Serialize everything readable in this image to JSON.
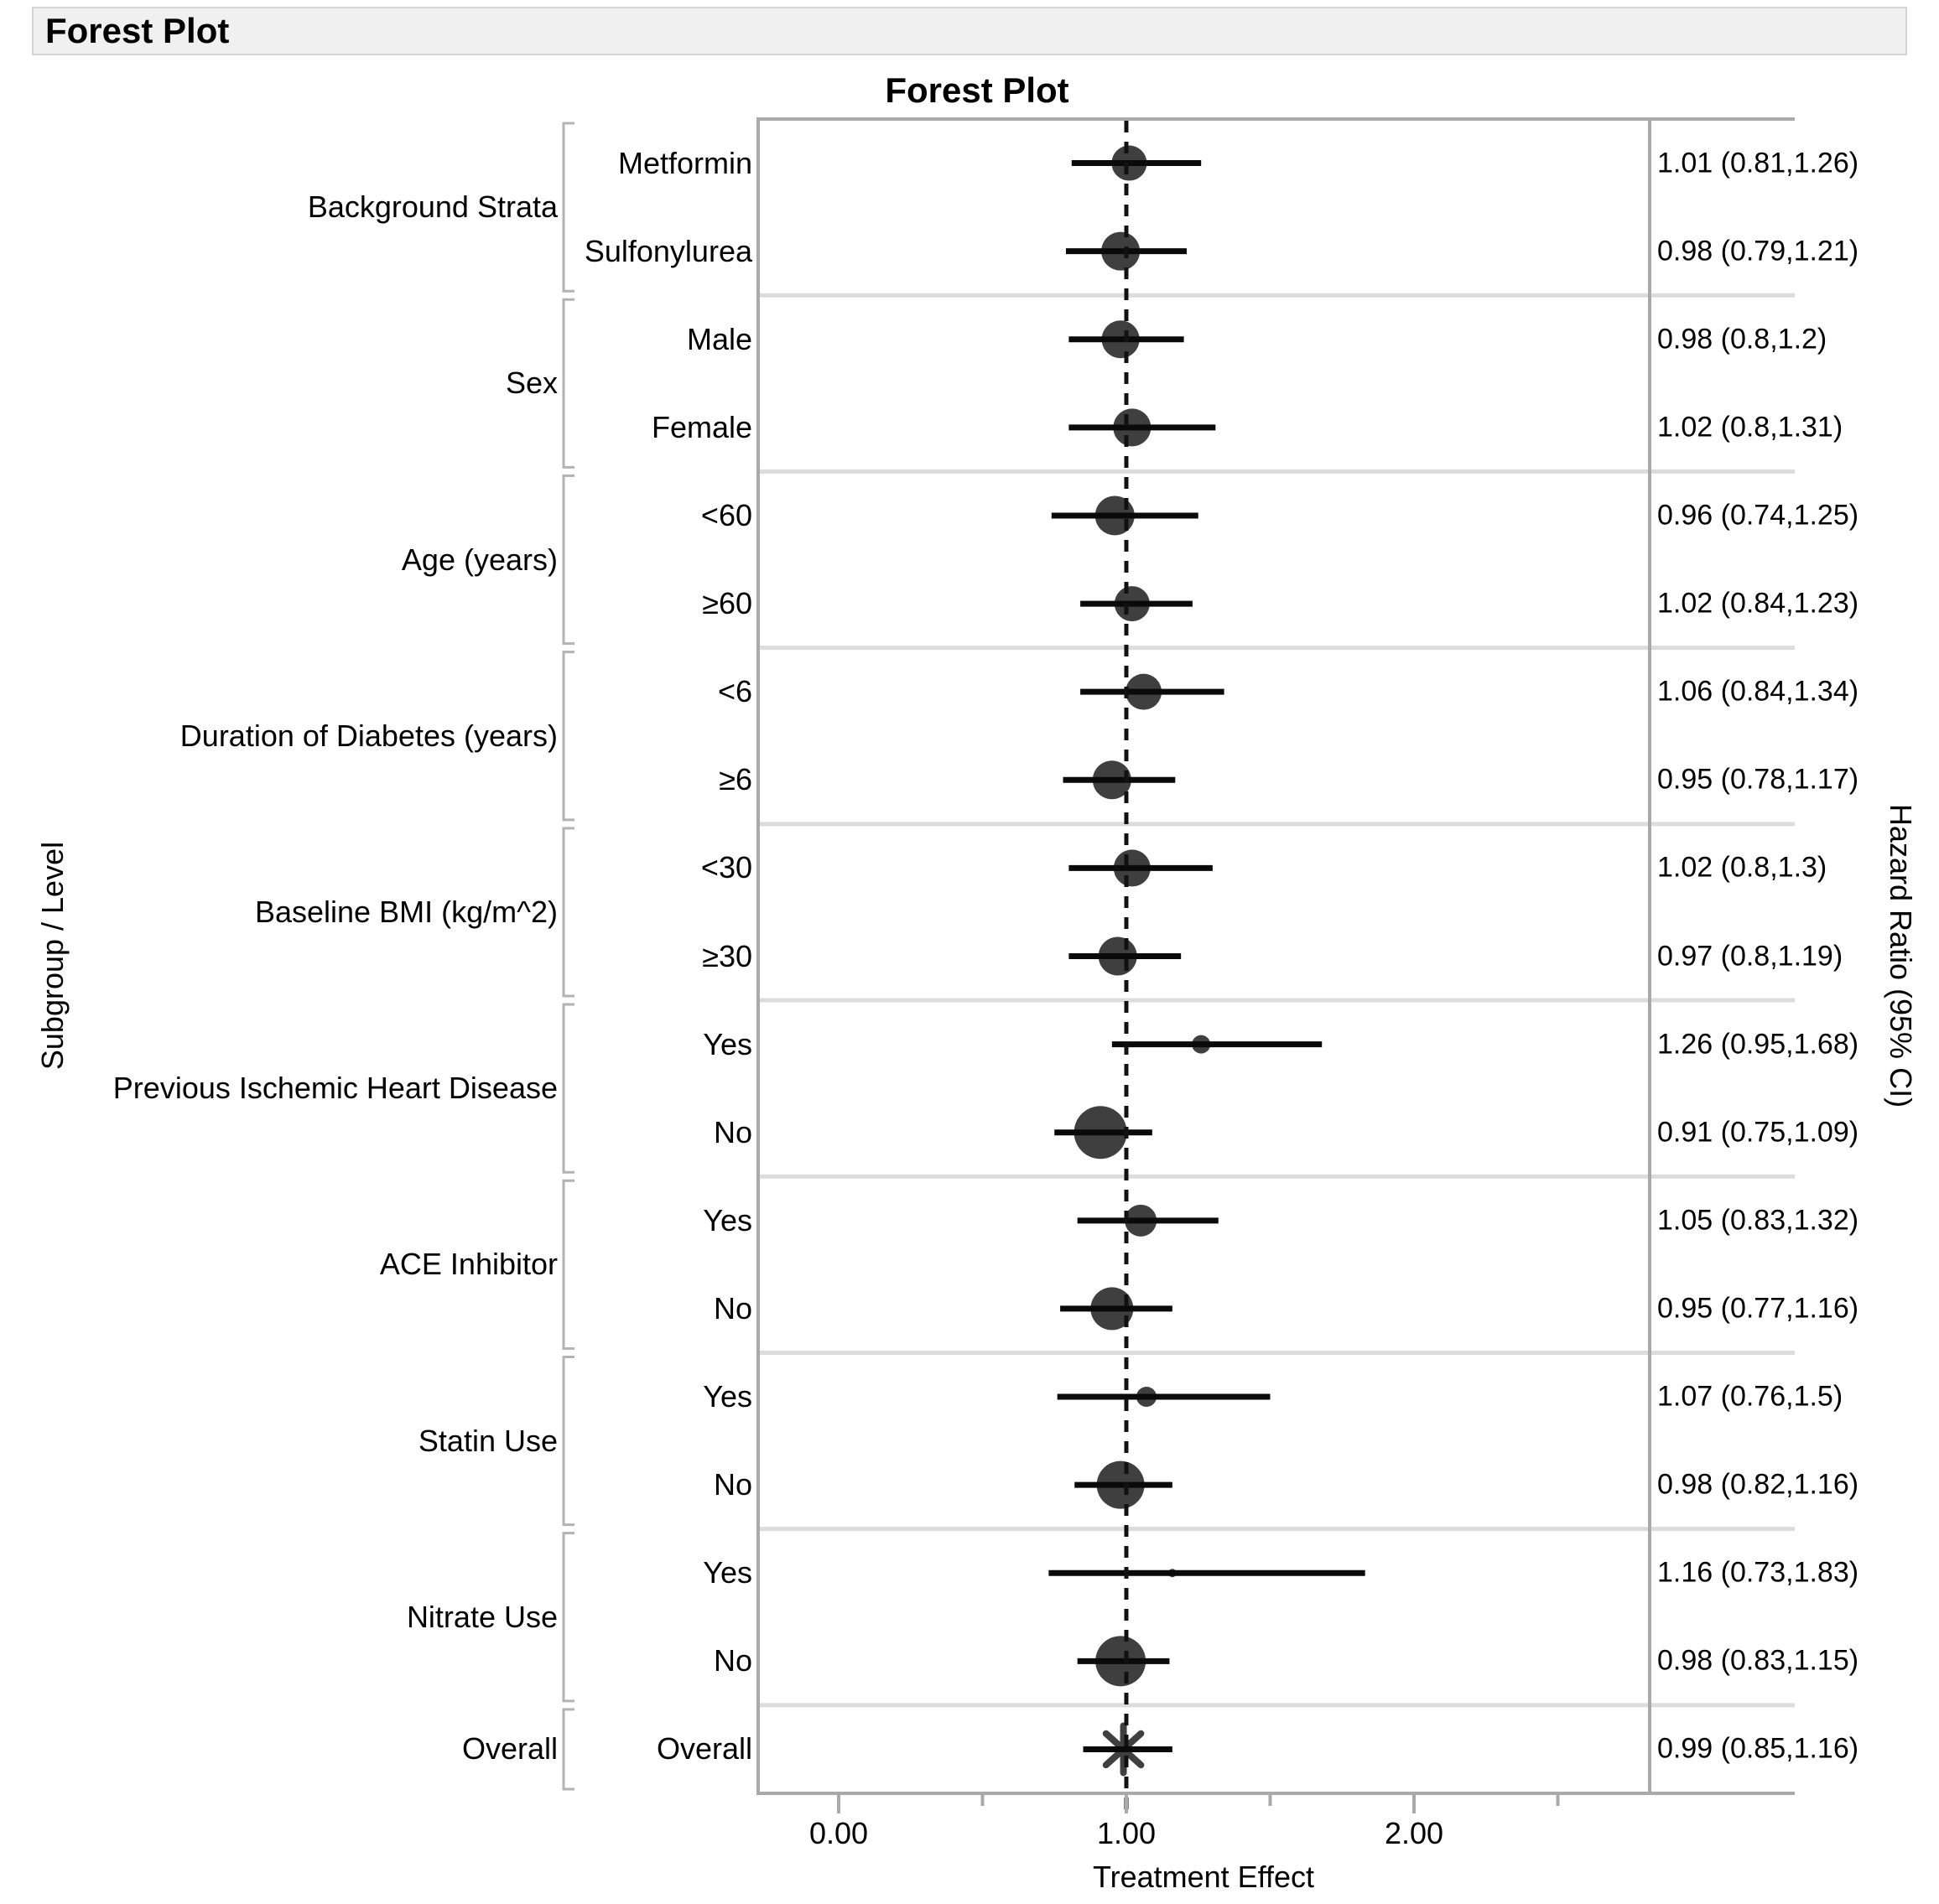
{
  "header": {
    "title": "Forest Plot"
  },
  "chart": {
    "title": "Forest Plot",
    "x_axis": {
      "title": "Treatment Effect",
      "tick_labels": [
        "0.00",
        "1.00",
        "2.00"
      ],
      "tick_values": [
        0,
        1,
        2
      ],
      "minor_tick_values": [
        0.5,
        1.5,
        2.5
      ]
    },
    "left_axis_title": "Subgroup / Level",
    "right_axis_title": "Hazard Ratio (95% CI)"
  },
  "colors": {
    "marker": "#3f3f3f",
    "ci_line": "#0a0a0a",
    "reference_line": "#111111",
    "frame": "#a9a9a9",
    "separator": "#dcdcdc",
    "bracket": "#b3b3b3",
    "header_bg": "#f0f0f0",
    "text": "#000000"
  },
  "chart_data": {
    "type": "forest",
    "xlabel": "Treatment Effect",
    "xlim": [
      -0.28,
      2.82
    ],
    "reference_line": 1.0,
    "groups": [
      {
        "label": "Background Strata",
        "levels": [
          {
            "level": "Metformin",
            "hr": 1.01,
            "lo": 0.81,
            "hi": 1.26,
            "display": "1.01 (0.81,1.26)",
            "marker": "circle",
            "marker_px": 42
          },
          {
            "level": "Sulfonylurea",
            "hr": 0.98,
            "lo": 0.79,
            "hi": 1.21,
            "display": "0.98 (0.79,1.21)",
            "marker": "circle",
            "marker_px": 46
          }
        ]
      },
      {
        "label": "Sex",
        "levels": [
          {
            "level": "Male",
            "hr": 0.98,
            "lo": 0.8,
            "hi": 1.2,
            "display": "0.98 (0.8,1.2)",
            "marker": "circle",
            "marker_px": 45
          },
          {
            "level": "Female",
            "hr": 1.02,
            "lo": 0.8,
            "hi": 1.31,
            "display": "1.02 (0.8,1.31)",
            "marker": "circle",
            "marker_px": 45
          }
        ]
      },
      {
        "label": "Age (years)",
        "levels": [
          {
            "level": "<60",
            "hr": 0.96,
            "lo": 0.74,
            "hi": 1.25,
            "display": "0.96 (0.74,1.25)",
            "marker": "circle",
            "marker_px": 47
          },
          {
            "level": "≥60",
            "hr": 1.02,
            "lo": 0.84,
            "hi": 1.23,
            "display": "1.02 (0.84,1.23)",
            "marker": "circle",
            "marker_px": 42
          }
        ]
      },
      {
        "label": "Duration of Diabetes (years)",
        "levels": [
          {
            "level": "<6",
            "hr": 1.06,
            "lo": 0.84,
            "hi": 1.34,
            "display": "1.06 (0.84,1.34)",
            "marker": "circle",
            "marker_px": 43
          },
          {
            "level": "≥6",
            "hr": 0.95,
            "lo": 0.78,
            "hi": 1.17,
            "display": "0.95 (0.78,1.17)",
            "marker": "circle",
            "marker_px": 46
          }
        ]
      },
      {
        "label": "Baseline BMI (kg/m^2)",
        "levels": [
          {
            "level": "<30",
            "hr": 1.02,
            "lo": 0.8,
            "hi": 1.3,
            "display": "1.02 (0.8,1.3)",
            "marker": "circle",
            "marker_px": 44
          },
          {
            "level": "≥30",
            "hr": 0.97,
            "lo": 0.8,
            "hi": 1.19,
            "display": "0.97 (0.8,1.19)",
            "marker": "circle",
            "marker_px": 46
          }
        ]
      },
      {
        "label": "Previous Ischemic Heart Disease",
        "levels": [
          {
            "level": "Yes",
            "hr": 1.26,
            "lo": 0.95,
            "hi": 1.68,
            "display": "1.26 (0.95,1.68)",
            "marker": "circle",
            "marker_px": 22
          },
          {
            "level": "No",
            "hr": 0.91,
            "lo": 0.75,
            "hi": 1.09,
            "display": "0.91 (0.75,1.09)",
            "marker": "circle",
            "marker_px": 63
          }
        ]
      },
      {
        "label": "ACE Inhibitor",
        "levels": [
          {
            "level": "Yes",
            "hr": 1.05,
            "lo": 0.83,
            "hi": 1.32,
            "display": "1.05 (0.83,1.32)",
            "marker": "circle",
            "marker_px": 38
          },
          {
            "level": "No",
            "hr": 0.95,
            "lo": 0.77,
            "hi": 1.16,
            "display": "0.95 (0.77,1.16)",
            "marker": "circle",
            "marker_px": 51
          }
        ]
      },
      {
        "label": "Statin Use",
        "levels": [
          {
            "level": "Yes",
            "hr": 1.07,
            "lo": 0.76,
            "hi": 1.5,
            "display": "1.07 (0.76,1.5)",
            "marker": "circle",
            "marker_px": 24
          },
          {
            "level": "No",
            "hr": 0.98,
            "lo": 0.82,
            "hi": 1.16,
            "display": "0.98 (0.82,1.16)",
            "marker": "circle",
            "marker_px": 57
          }
        ]
      },
      {
        "label": "Nitrate Use",
        "levels": [
          {
            "level": "Yes",
            "hr": 1.16,
            "lo": 0.73,
            "hi": 1.83,
            "display": "1.16 (0.73,1.83)",
            "marker": "circle",
            "marker_px": 10
          },
          {
            "level": "No",
            "hr": 0.98,
            "lo": 0.83,
            "hi": 1.15,
            "display": "0.98 (0.83,1.15)",
            "marker": "circle",
            "marker_px": 60
          }
        ]
      },
      {
        "label": "Overall",
        "levels": [
          {
            "level": "Overall",
            "hr": 0.99,
            "lo": 0.85,
            "hi": 1.16,
            "display": "0.99 (0.85,1.16)",
            "marker": "asterisk",
            "marker_px": 56
          }
        ]
      }
    ]
  }
}
